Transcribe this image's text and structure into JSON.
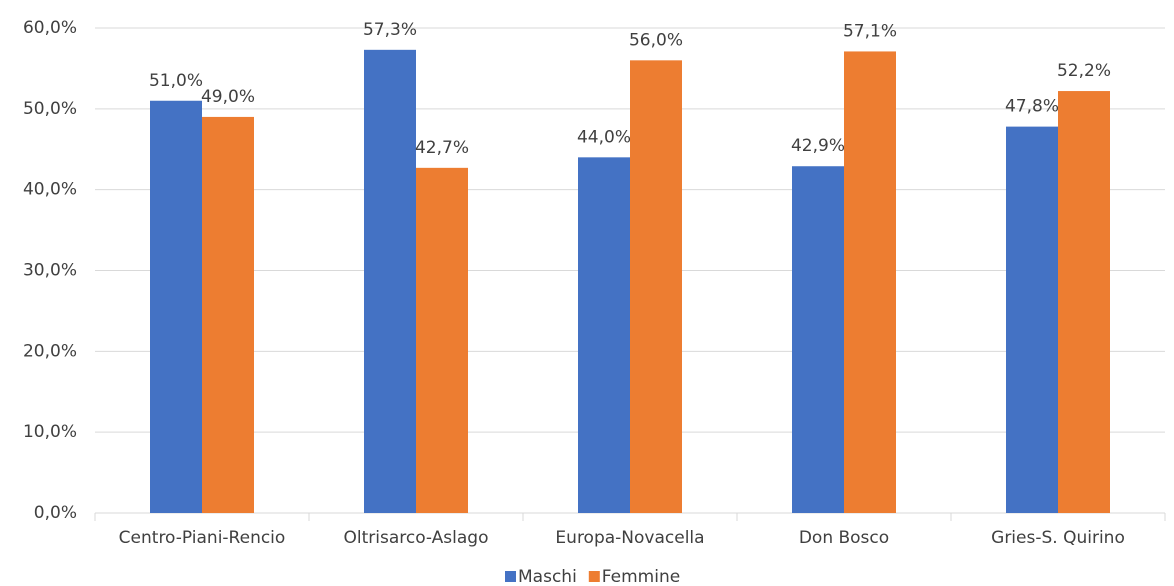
{
  "chart_data": {
    "type": "bar",
    "categories": [
      "Centro-Piani-Rencio",
      "Oltrisarco-Aslago",
      "Europa-Novacella",
      "Don Bosco",
      "Gries-S. Quirino"
    ],
    "series": [
      {
        "name": "Maschi",
        "color": "#4472c4",
        "values": [
          51.0,
          57.3,
          44.0,
          42.9,
          47.8
        ],
        "value_labels": [
          "51,0%",
          "57,3%",
          "44,0%",
          "42,9%",
          "47,8%"
        ]
      },
      {
        "name": "Femmine",
        "color": "#ed7d31",
        "values": [
          49.0,
          42.7,
          56.0,
          57.1,
          52.2
        ],
        "value_labels": [
          "49,0%",
          "42,7%",
          "56,0%",
          "57,1%",
          "52,2%"
        ]
      }
    ],
    "ylim": [
      0,
      60
    ],
    "yticks": [
      {
        "value": 0,
        "label": "0,0%"
      },
      {
        "value": 10,
        "label": "10,0%"
      },
      {
        "value": 20,
        "label": "20,0%"
      },
      {
        "value": 30,
        "label": "30,0%"
      },
      {
        "value": 40,
        "label": "40,0%"
      },
      {
        "value": 50,
        "label": "50,0%"
      },
      {
        "value": 60,
        "label": "60,0%"
      }
    ],
    "grid": true
  }
}
